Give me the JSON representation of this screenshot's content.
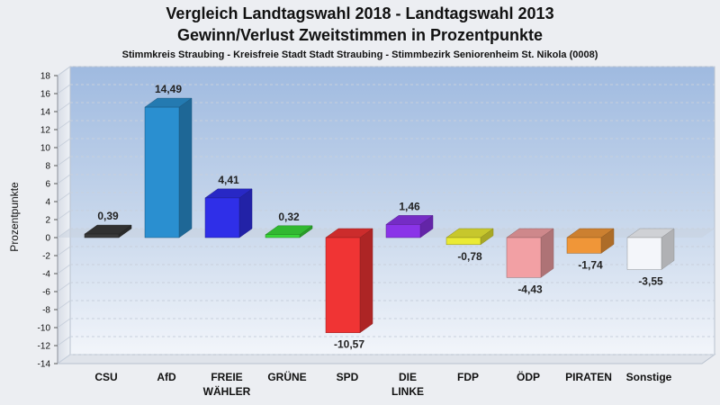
{
  "chart_data": {
    "type": "bar",
    "title": "Vergleich Landtagswahl 2018 - Landtagswahl 2013",
    "title2": "Gewinn/Verlust Zweitstimmen in Prozentpunkte",
    "subtitle": "Stimmkreis Straubing - Kreisfreie Stadt Stadt Straubing - Stimmbezirk Seniorenheim St. Nikola (0008)",
    "ylabel": "Prozentpunkte",
    "ylim": [
      -14,
      18
    ],
    "yticks": [
      18,
      16,
      14,
      12,
      10,
      8,
      6,
      4,
      2,
      0,
      -2,
      -4,
      -6,
      -8,
      -10,
      -12,
      -14
    ],
    "grid": true,
    "categories": [
      [
        "CSU"
      ],
      [
        "AfD"
      ],
      [
        "FREIE",
        "WÄHLER"
      ],
      [
        "GRÜNE"
      ],
      [
        "SPD"
      ],
      [
        "DIE",
        "LINKE"
      ],
      [
        "FDP"
      ],
      [
        "ÖDP"
      ],
      [
        "PIRATEN"
      ],
      [
        "Sonstige"
      ]
    ],
    "values": [
      0.39,
      14.49,
      4.41,
      0.32,
      -10.57,
      1.46,
      -0.78,
      -4.43,
      -1.74,
      -3.55
    ],
    "value_labels": [
      "0,39",
      "14,49",
      "4,41",
      "0,32",
      "-10,57",
      "1,46",
      "-0,78",
      "-4,43",
      "-1,74",
      "-3,55"
    ],
    "colors": [
      "#3a3a3a",
      "#2a8fd0",
      "#2f2fe8",
      "#3ad83a",
      "#f03434",
      "#8a34e8",
      "#eaea34",
      "#f2a0a4",
      "#f09638",
      "#f4f6fa"
    ]
  }
}
